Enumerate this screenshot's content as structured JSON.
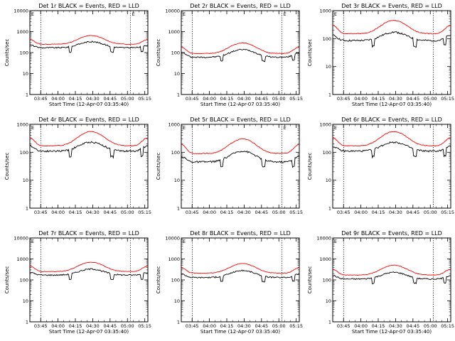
{
  "colors": {
    "events": "#000000",
    "lld": "#ff0000",
    "axis": "#000000"
  },
  "chart_data": [
    {
      "type": "line",
      "title": "Det 1r BLACK = Events, RED = LLD",
      "ylabel": "Counts/sec",
      "xlabel": "Start Time (12-Apr-07 03:35:40)",
      "yscale": "log",
      "ylim": [
        1,
        10000
      ],
      "xlim": [
        0,
        42
      ],
      "xtick_labels": [
        "03:45",
        "04:00",
        "04:15",
        "04:30",
        "04:45",
        "05:00",
        "05:15"
      ],
      "ytick_labels": [
        "1",
        "10",
        "100",
        "1000",
        "10000"
      ],
      "markers": [
        "E",
        "E"
      ],
      "series": [
        {
          "name": "Events",
          "color": "#000000",
          "base": 170,
          "peak": 330,
          "edge": 230
        },
        {
          "name": "LLD",
          "color": "#ff0000",
          "base": 250,
          "peak": 650,
          "edge": 420
        }
      ]
    },
    {
      "type": "line",
      "title": "Det 2r BLACK = Events, RED = LLD",
      "ylabel": "Counts/sec",
      "xlabel": "Start Time (12-Apr-07 03:35:40)",
      "yscale": "log",
      "ylim": [
        1,
        10000
      ],
      "xlim": [
        0,
        42
      ],
      "xtick_labels": [
        "03:45",
        "04:00",
        "04:15",
        "04:30",
        "04:45",
        "05:00",
        "05:15"
      ],
      "ytick_labels": [
        "1",
        "10",
        "100",
        "1000",
        "10000"
      ],
      "markers": [
        "E",
        "E"
      ],
      "series": [
        {
          "name": "Events",
          "color": "#000000",
          "base": 60,
          "peak": 140,
          "edge": 100
        },
        {
          "name": "LLD",
          "color": "#ff0000",
          "base": 90,
          "peak": 290,
          "edge": 180
        }
      ]
    },
    {
      "type": "line",
      "title": "Det 3r BLACK = Events, RED = LLD",
      "ylabel": "Counts/sec",
      "xlabel": "Start Time (12-Apr-07 03:35:40)",
      "yscale": "log",
      "ylim": [
        1,
        1000
      ],
      "xlim": [
        0,
        42
      ],
      "xtick_labels": [
        "03:45",
        "04:00",
        "04:15",
        "04:30",
        "04:45",
        "05:00",
        "05:15"
      ],
      "ytick_labels": [
        "1",
        "10",
        "100",
        "1000"
      ],
      "markers": [
        "E"
      ],
      "series": [
        {
          "name": "Events",
          "color": "#000000",
          "base": 85,
          "peak": 170,
          "edge": 130
        },
        {
          "name": "LLD",
          "color": "#ff0000",
          "base": 150,
          "peak": 450,
          "edge": 300
        }
      ]
    },
    {
      "type": "line",
      "title": "Det 4r BLACK = Events, RED = LLD",
      "ylabel": "Counts/sec",
      "xlabel": "",
      "yscale": "log",
      "ylim": [
        1,
        1000
      ],
      "xlim": [
        0,
        42
      ],
      "xtick_labels": [
        "03:45",
        "04:00",
        "04:15",
        "04:30",
        "04:45",
        "05:00",
        "05:15"
      ],
      "ytick_labels": [
        "1",
        "10",
        "100",
        "1000"
      ],
      "markers": [
        "E"
      ],
      "series": [
        {
          "name": "Events",
          "color": "#000000",
          "base": 110,
          "peak": 230,
          "edge": 170
        },
        {
          "name": "LLD",
          "color": "#ff0000",
          "base": 170,
          "peak": 550,
          "edge": 330
        }
      ]
    },
    {
      "type": "line",
      "title": "Det 5r BLACK = Events, RED = LLD",
      "ylabel": "Counts/sec",
      "xlabel": "",
      "yscale": "log",
      "ylim": [
        1,
        1000
      ],
      "xlim": [
        0,
        42
      ],
      "xtick_labels": [
        "03:45",
        "04:00",
        "04:15",
        "04:30",
        "04:45",
        "05:00",
        "05:15"
      ],
      "ytick_labels": [
        "1",
        "10",
        "100",
        "1000"
      ],
      "markers": [
        "E",
        "E"
      ],
      "series": [
        {
          "name": "Events",
          "color": "#000000",
          "base": 45,
          "peak": 110,
          "edge": 70
        },
        {
          "name": "LLD",
          "color": "#ff0000",
          "base": 90,
          "peak": 300,
          "edge": 190
        }
      ]
    },
    {
      "type": "line",
      "title": "Det 6r BLACK = Events, RED = LLD",
      "ylabel": "Counts/sec",
      "xlabel": "",
      "yscale": "log",
      "ylim": [
        1,
        1000
      ],
      "xlim": [
        0,
        42
      ],
      "xtick_labels": [
        "03:45",
        "04:00",
        "04:15",
        "04:30",
        "04:45",
        "05:00",
        "05:15"
      ],
      "ytick_labels": [
        "1",
        "10",
        "100",
        "1000"
      ],
      "markers": [
        "E"
      ],
      "series": [
        {
          "name": "Events",
          "color": "#000000",
          "base": 110,
          "peak": 230,
          "edge": 160
        },
        {
          "name": "LLD",
          "color": "#ff0000",
          "base": 170,
          "peak": 550,
          "edge": 330
        }
      ]
    },
    {
      "type": "line",
      "title": "Det 7r BLACK = Events, RED = LLD",
      "ylabel": "Counts/sec",
      "xlabel": "Start Time (12-Apr-07 03:35:40)",
      "yscale": "log",
      "ylim": [
        1,
        10000
      ],
      "xlim": [
        0,
        42
      ],
      "xtick_labels": [
        "03:45",
        "04:00",
        "04:15",
        "04:30",
        "04:45",
        "05:00",
        "05:15"
      ],
      "ytick_labels": [
        "1",
        "10",
        "100",
        "1000",
        "10000"
      ],
      "markers": [
        "E"
      ],
      "series": [
        {
          "name": "Events",
          "color": "#000000",
          "base": 170,
          "peak": 330,
          "edge": 230
        },
        {
          "name": "LLD",
          "color": "#ff0000",
          "base": 250,
          "peak": 700,
          "edge": 450
        }
      ]
    },
    {
      "type": "line",
      "title": "Det 8r BLACK = Events, RED = LLD",
      "ylabel": "Counts/sec",
      "xlabel": "Start Time (12-Apr-07 03:35:40)",
      "yscale": "log",
      "ylim": [
        1,
        10000
      ],
      "xlim": [
        0,
        42
      ],
      "xtick_labels": [
        "03:45",
        "04:00",
        "04:15",
        "04:30",
        "04:45",
        "05:00",
        "05:15"
      ],
      "ytick_labels": [
        "1",
        "10",
        "100",
        "1000",
        "10000"
      ],
      "markers": [
        "E"
      ],
      "series": [
        {
          "name": "Events",
          "color": "#000000",
          "base": 130,
          "peak": 280,
          "edge": 190
        },
        {
          "name": "LLD",
          "color": "#ff0000",
          "base": 210,
          "peak": 600,
          "edge": 380
        }
      ]
    },
    {
      "type": "line",
      "title": "Det 9r BLACK = Events, RED = LLD",
      "ylabel": "Counts/sec",
      "xlabel": "Start Time (12-Apr-07 03:35:40)",
      "yscale": "log",
      "ylim": [
        1,
        10000
      ],
      "xlim": [
        0,
        42
      ],
      "xtick_labels": [
        "03:45",
        "04:00",
        "04:15",
        "04:30",
        "04:45",
        "05:00",
        "05:15"
      ],
      "ytick_labels": [
        "1",
        "10",
        "100",
        "1000",
        "10000"
      ],
      "markers": [
        "E"
      ],
      "series": [
        {
          "name": "Events",
          "color": "#000000",
          "base": 110,
          "peak": 230,
          "edge": 160
        },
        {
          "name": "LLD",
          "color": "#ff0000",
          "base": 170,
          "peak": 500,
          "edge": 320
        }
      ]
    }
  ]
}
